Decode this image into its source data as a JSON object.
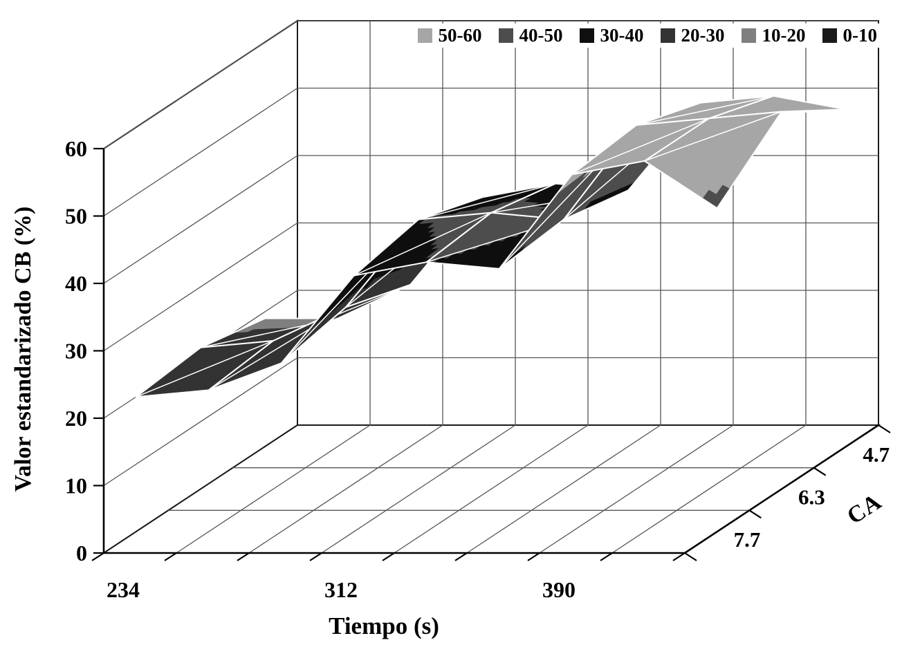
{
  "chart_data": {
    "type": "surface",
    "title": "",
    "xlabel": "Tiempo (s)",
    "ylabel": "Valor estandarizado CB (%)",
    "zlabel": "CA",
    "ylim": [
      0,
      60
    ],
    "y_ticks": [
      0,
      10,
      20,
      30,
      40,
      50,
      60
    ],
    "x_tick_labels": [
      "234",
      "312",
      "390"
    ],
    "x_tick_positions": [
      0,
      3,
      6
    ],
    "n_x_points": 9,
    "x_values_estimated": [
      234,
      260,
      286,
      312,
      338,
      364,
      390,
      416,
      442
    ],
    "z_axis_labels_front_to_back": [
      "7.7",
      "6.3",
      "4.7"
    ],
    "legend_position": "top",
    "grid": true,
    "bands": [
      {
        "label": "50-60",
        "min": 50,
        "max": 60,
        "color": "#a6a6a6"
      },
      {
        "label": "40-50",
        "min": 40,
        "max": 50,
        "color": "#4d4d4d"
      },
      {
        "label": "30-40",
        "min": 30,
        "max": 40,
        "color": "#0f0f0f"
      },
      {
        "label": "20-30",
        "min": 20,
        "max": 30,
        "color": "#333333"
      },
      {
        "label": "10-20",
        "min": 10,
        "max": 20,
        "color": "#7f7f7f"
      },
      {
        "label": "0-10",
        "min": 0,
        "max": 10,
        "color": "#1a1a1a"
      }
    ],
    "series": [
      {
        "name": "4.7",
        "depth": "back",
        "values": [
          19,
          19,
          24,
          37,
          39,
          38,
          51,
          52,
          50
        ]
      },
      {
        "name": "6.3",
        "depth": "middle",
        "values": [
          21,
          22,
          27,
          40,
          41,
          40,
          54,
          55,
          56
        ]
      },
      {
        "name": "7.7",
        "depth": "front",
        "values": [
          20,
          21,
          25,
          38,
          40,
          39,
          53,
          55,
          48
        ]
      }
    ]
  }
}
